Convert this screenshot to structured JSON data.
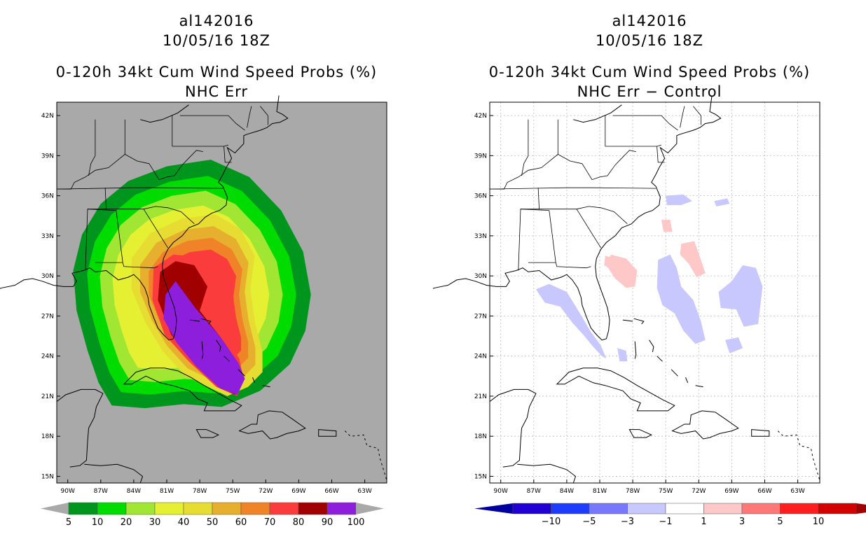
{
  "left": {
    "storm_id": "al142016",
    "datetime": "10/05/16 18Z",
    "product": "0-120h 34kt Cum Wind Speed Probs (%)",
    "subtitle": "NHC Err",
    "background_color": "#a9a9a9",
    "colorbar": {
      "labels": [
        "5",
        "10",
        "20",
        "30",
        "40",
        "50",
        "60",
        "70",
        "80",
        "90",
        "100"
      ],
      "colors": [
        "#00961e",
        "#00dc00",
        "#a0e632",
        "#e6f032",
        "#e6dc32",
        "#e6af2d",
        "#f08228",
        "#fa3c3c",
        "#a00000",
        "#8c1edc"
      ],
      "end_color": "#a9a9a9"
    }
  },
  "right": {
    "storm_id": "al142016",
    "datetime": "10/05/16 18Z",
    "product": "0-120h 34kt Cum Wind Speed Probs (%)",
    "subtitle": "NHC Err − Control",
    "background_color": "#ffffff",
    "colorbar": {
      "labels": [
        "−10",
        "−5",
        "−3",
        "−1",
        "1",
        "3",
        "5",
        "10"
      ],
      "colors": [
        "#1e00d2",
        "#1e3cff",
        "#7878ff",
        "#c8c8ff",
        "#ffffff",
        "#ffc8c8",
        "#ff7878",
        "#ff1e1e",
        "#d20000"
      ],
      "left_tip": "#0000a0",
      "right_tip": "#a00000"
    }
  },
  "chart_data": [
    {
      "type": "heatmap",
      "title": "0-120h 34kt Cum Wind Speed Probs (%) — NHC Err",
      "units": "%",
      "storm": "al142016",
      "valid": "10/05/16 18Z",
      "x_range_lon": [
        -91,
        -61
      ],
      "y_range_lat": [
        14.5,
        43
      ],
      "x_ticks": [
        "90W",
        "87W",
        "84W",
        "81W",
        "78W",
        "75W",
        "72W",
        "69W",
        "66W",
        "63W"
      ],
      "y_ticks": [
        "15N",
        "18N",
        "21N",
        "24N",
        "27N",
        "30N",
        "33N",
        "36N",
        "39N",
        "42N"
      ],
      "contour_levels": [
        5,
        10,
        20,
        30,
        40,
        50,
        60,
        70,
        80,
        90,
        100
      ],
      "max_region": "90-100% over the Bahamas from 21N 74W to 29N 81W, along the Florida east coast",
      "extent": "5% contour spans roughly 20N-39N and 89W-68W"
    },
    {
      "type": "heatmap",
      "title": "0-120h 34kt Cum Wind Speed Probs (%) — NHC Err − Control",
      "units": "%",
      "storm": "al142016",
      "valid": "10/05/16 18Z",
      "x_range_lon": [
        -91,
        -61
      ],
      "y_range_lat": [
        14.5,
        43
      ],
      "x_ticks": [
        "90W",
        "87W",
        "84W",
        "81W",
        "78W",
        "75W",
        "72W",
        "69W",
        "66W",
        "63W"
      ],
      "y_ticks": [
        "15N",
        "18N",
        "21N",
        "24N",
        "27N",
        "30N",
        "33N",
        "36N",
        "39N",
        "42N"
      ],
      "contour_levels": [
        -10,
        -5,
        -3,
        -1,
        1,
        3,
        5,
        10
      ],
      "positive_areas": "1-3% patches near 31N 78W, 32N 73W and 34N 75W",
      "negative_areas": "-1 to -3% bands along the eastern Gulf coast, 27-31N 71-76W, 25-30N 66-70W and near 36N 74W"
    }
  ]
}
